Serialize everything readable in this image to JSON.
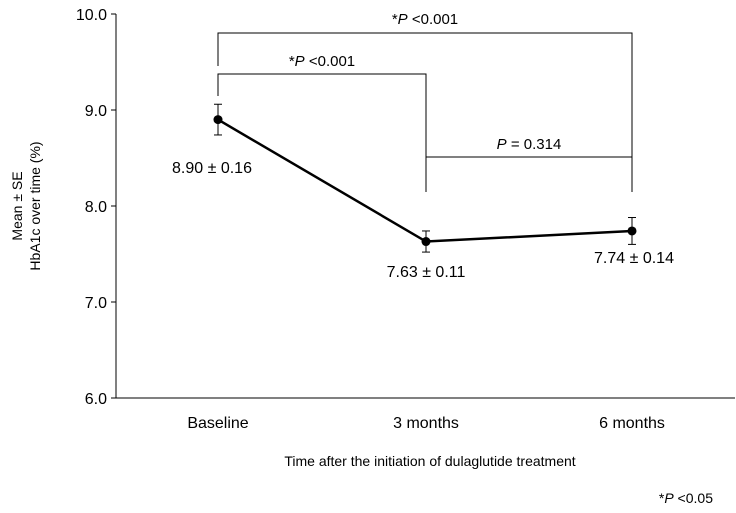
{
  "chart_data": {
    "type": "line",
    "categories": [
      "Baseline",
      "3 months",
      "6 months"
    ],
    "series": [
      {
        "values": [
          8.9,
          7.63,
          7.74
        ],
        "se": [
          0.16,
          0.11,
          0.14
        ],
        "color": "#000000"
      }
    ],
    "data_labels": [
      "8.90 ± 0.16",
      "7.63 ± 0.11",
      "7.74 ± 0.14"
    ],
    "ylim": [
      6.0,
      10.0
    ],
    "yticks": [
      "6.0",
      "7.0",
      "8.0",
      "9.0",
      "10.0"
    ],
    "ylabel_line1": "Mean ± SE",
    "ylabel_line2": "HbA1c over time (%)",
    "xlabel": "Time after the initiation of dulaglutide treatment",
    "grid": false,
    "significance": [
      {
        "from": 0,
        "to": 1,
        "prefix": "*",
        "p": "P",
        "rest": " <0.001"
      },
      {
        "from": 0,
        "to": 2,
        "prefix": "*",
        "p": "P",
        "rest": " <0.001"
      },
      {
        "from": 1,
        "to": 2,
        "prefix": "",
        "p": "P",
        "rest": " = 0.314"
      }
    ],
    "footnote": {
      "prefix": "*",
      "p": "P",
      "rest": " <0.05"
    }
  }
}
